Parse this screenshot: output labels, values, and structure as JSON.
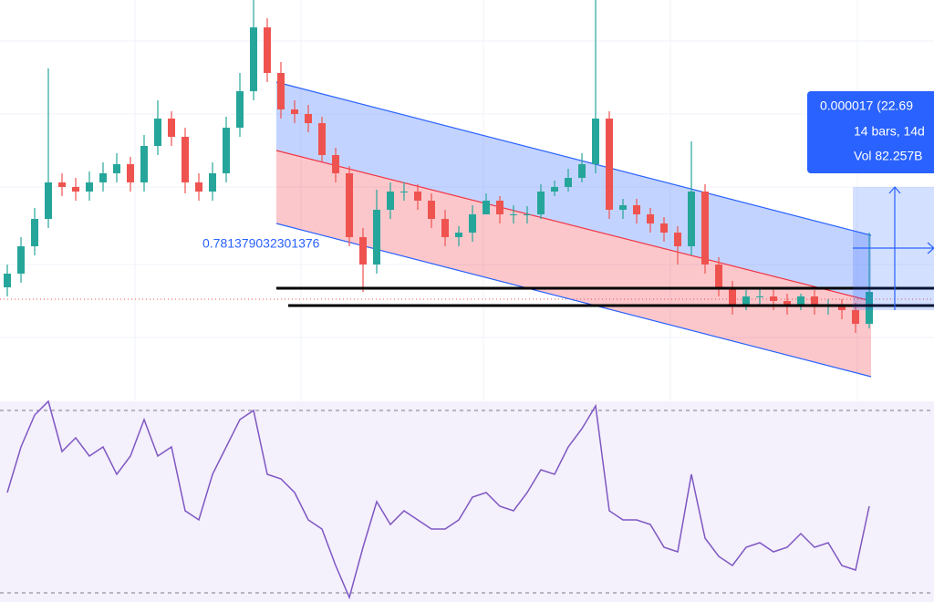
{
  "chart_data": [
    {
      "type": "candlestick",
      "annotations": [
        "0.781379032301376"
      ],
      "measure_label": [
        "0.000017 (22.69",
        "14 bars, 14d",
        "Vol 82.257B"
      ],
      "up_color": "#26a69a",
      "down_color": "#ef5350",
      "ylim": [
        0,
        440
      ],
      "open": [
        125,
        140,
        170,
        200,
        240,
        235,
        230,
        240,
        250,
        260,
        240,
        280,
        310,
        290,
        240,
        230,
        250,
        300,
        340,
        410,
        360,
        320,
        315,
        305,
        270,
        250,
        180,
        150,
        210,
        230,
        230,
        220,
        200,
        180,
        185,
        205,
        220,
        205,
        205,
        205,
        230,
        235,
        245,
        260,
        310,
        210,
        215,
        205,
        195,
        185,
        170,
        230,
        150,
        125,
        105,
        115,
        115,
        110,
        105,
        115,
        105,
        105,
        100,
        85
      ],
      "high": [
        150,
        180,
        212,
        365,
        250,
        245,
        252,
        262,
        272,
        268,
        292,
        330,
        318,
        300,
        250,
        262,
        312,
        360,
        440,
        420,
        372,
        330,
        325,
        312,
        278,
        258,
        190,
        232,
        240,
        240,
        238,
        228,
        210,
        192,
        215,
        228,
        225,
        215,
        214,
        238,
        242,
        255,
        272,
        440,
        318,
        222,
        222,
        212,
        202,
        192,
        285,
        238,
        158,
        132,
        122,
        125,
        125,
        118,
        118,
        122,
        112,
        112,
        108,
        185
      ],
      "low": [
        115,
        130,
        160,
        190,
        225,
        220,
        220,
        230,
        240,
        230,
        230,
        270,
        280,
        228,
        220,
        220,
        240,
        290,
        330,
        350,
        310,
        305,
        295,
        262,
        240,
        170,
        120,
        140,
        200,
        220,
        210,
        190,
        170,
        170,
        175,
        205,
        195,
        195,
        195,
        200,
        225,
        230,
        240,
        250,
        200,
        200,
        195,
        185,
        175,
        150,
        160,
        140,
        115,
        95,
        100,
        105,
        100,
        95,
        100,
        95,
        95,
        90,
        75,
        80
      ],
      "close": [
        140,
        170,
        200,
        240,
        235,
        230,
        240,
        250,
        260,
        240,
        280,
        310,
        290,
        240,
        230,
        250,
        300,
        340,
        410,
        360,
        320,
        315,
        305,
        270,
        250,
        180,
        150,
        210,
        230,
        230,
        220,
        200,
        180,
        185,
        205,
        220,
        205,
        205,
        205,
        230,
        235,
        245,
        260,
        310,
        210,
        215,
        205,
        195,
        185,
        170,
        230,
        150,
        125,
        105,
        115,
        115,
        110,
        105,
        115,
        105,
        105,
        100,
        85,
        120
      ]
    },
    {
      "type": "line",
      "color": "#7e57c2",
      "ylim": [
        28,
        72
      ],
      "levels": [
        30,
        70
      ],
      "values": [
        52,
        62,
        69,
        72,
        61,
        64,
        60,
        62,
        56,
        60,
        68,
        60,
        62,
        48,
        46,
        56,
        62,
        68,
        70,
        56,
        55,
        52,
        46,
        44,
        36,
        29,
        40,
        50,
        45,
        48,
        46,
        44,
        44,
        46,
        51,
        52,
        49,
        48,
        52,
        57,
        56,
        62,
        66,
        71,
        48,
        46,
        46,
        45,
        40,
        39,
        56,
        42,
        38,
        36,
        40,
        41,
        39,
        40,
        43,
        40,
        41,
        36,
        35,
        49
      ]
    }
  ]
}
